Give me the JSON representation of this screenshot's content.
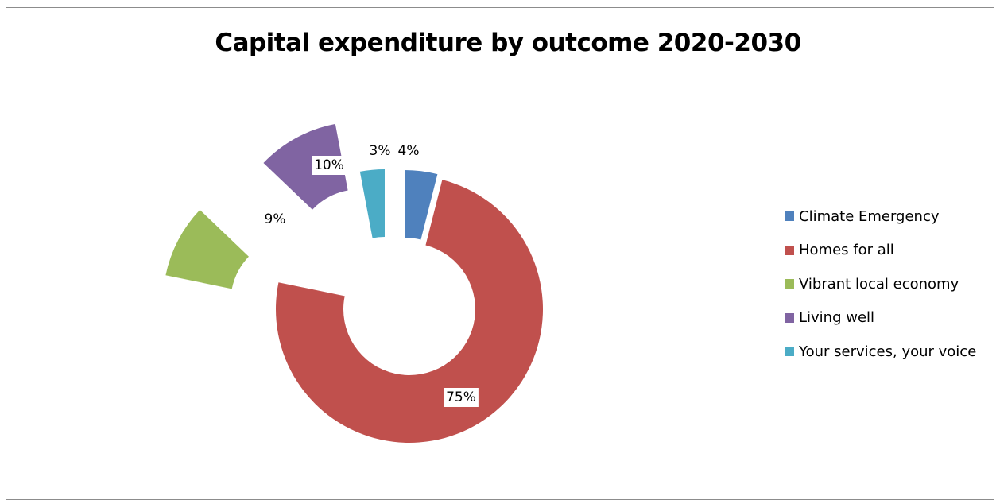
{
  "chart_data": {
    "type": "pie",
    "variant": "exploded donut",
    "title": "Capital expenditure by outcome 2020-2030",
    "legend_position": "right",
    "series": [
      {
        "name": "",
        "slices": [
          {
            "label": "Climate Emergency",
            "value": 4,
            "data_label": "4%",
            "color": "#4f81bd"
          },
          {
            "label": "Homes for all",
            "value": 75,
            "data_label": "75%",
            "color": "#c0504d"
          },
          {
            "label": "Vibrant local economy",
            "value": 9,
            "data_label": "9%",
            "color": "#9bbb59"
          },
          {
            "label": "Living well",
            "value": 10,
            "data_label": "10%",
            "color": "#8064a2"
          },
          {
            "label": "Your services, your voice",
            "value": 3,
            "data_label": "3%",
            "color": "#4bacc6"
          }
        ]
      }
    ]
  }
}
